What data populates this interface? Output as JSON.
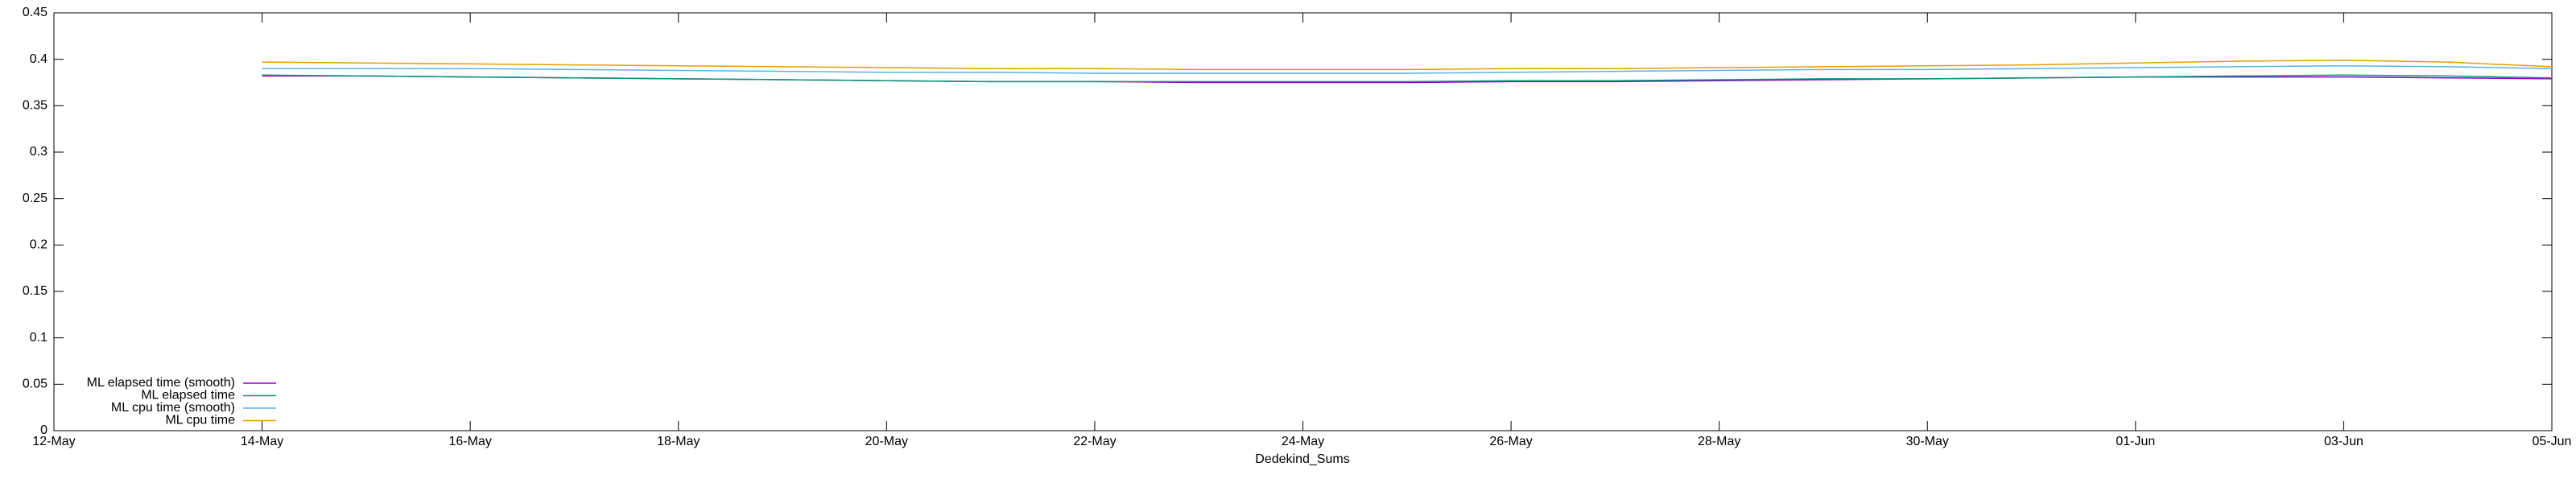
{
  "chart_data": {
    "type": "line",
    "xlabel": "Dedekind_Sums",
    "x": [
      "14-May",
      "15-May",
      "16-May",
      "17-May",
      "18-May",
      "19-May",
      "20-May",
      "21-May",
      "22-May",
      "23-May",
      "24-May",
      "25-May",
      "26-May",
      "27-May",
      "28-May",
      "29-May",
      "30-May",
      "31-May",
      "01-Jun",
      "02-Jun",
      "03-Jun",
      "04-Jun",
      "05-Jun"
    ],
    "xlim": [
      "12-May",
      "05-Jun"
    ],
    "xticks": [
      "12-May",
      "14-May",
      "16-May",
      "18-May",
      "20-May",
      "22-May",
      "24-May",
      "26-May",
      "28-May",
      "30-May",
      "01-Jun",
      "03-Jun",
      "05-Jun"
    ],
    "ylim": [
      0,
      0.45
    ],
    "yticks": [
      0,
      0.05,
      0.1,
      0.15,
      0.2,
      0.25,
      0.3,
      0.35,
      0.4,
      0.45
    ],
    "legend": "bottom-left",
    "series": [
      {
        "name": "ML elapsed time (smooth)",
        "color": "#9400d3",
        "values": [
          0.382,
          0.382,
          0.381,
          0.38,
          0.379,
          0.378,
          0.377,
          0.376,
          0.376,
          0.375,
          0.375,
          0.375,
          0.376,
          0.376,
          0.377,
          0.378,
          0.379,
          0.38,
          0.381,
          0.381,
          0.381,
          0.38,
          0.379
        ]
      },
      {
        "name": "ML elapsed time",
        "color": "#009e73",
        "values": [
          0.383,
          0.382,
          0.381,
          0.38,
          0.379,
          0.378,
          0.377,
          0.376,
          0.376,
          0.376,
          0.376,
          0.376,
          0.377,
          0.377,
          0.378,
          0.379,
          0.379,
          0.38,
          0.381,
          0.382,
          0.383,
          0.382,
          0.38
        ]
      },
      {
        "name": "ML cpu time (smooth)",
        "color": "#56b4e9",
        "values": [
          0.39,
          0.39,
          0.39,
          0.389,
          0.388,
          0.387,
          0.386,
          0.386,
          0.385,
          0.385,
          0.385,
          0.385,
          0.386,
          0.387,
          0.388,
          0.389,
          0.389,
          0.39,
          0.391,
          0.392,
          0.393,
          0.392,
          0.39
        ]
      },
      {
        "name": "ML cpu time",
        "color": "#e69f00",
        "values": [
          0.397,
          0.396,
          0.395,
          0.394,
          0.393,
          0.392,
          0.391,
          0.39,
          0.39,
          0.389,
          0.389,
          0.389,
          0.39,
          0.39,
          0.391,
          0.392,
          0.393,
          0.394,
          0.396,
          0.398,
          0.399,
          0.397,
          0.392
        ]
      }
    ]
  }
}
